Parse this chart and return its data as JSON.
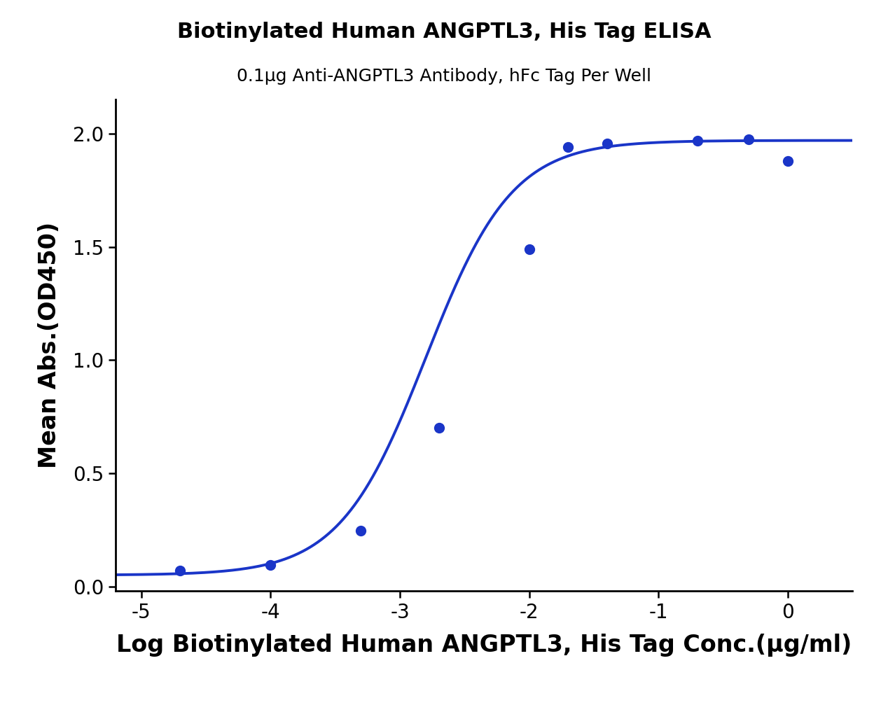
{
  "title": "Biotinylated Human ANGPTL3, His Tag ELISA",
  "subtitle": "0.1μg Anti-ANGPTL3 Antibody, hFc Tag Per Well",
  "xlabel": "Log Biotinylated Human ANGPTL3, His Tag Conc.(μg/ml)",
  "ylabel": "Mean Abs.(OD450)",
  "scatter_x": [
    -4.699,
    -4.0,
    -3.301,
    -2.699,
    -2.0,
    -1.699,
    -1.398,
    -0.699,
    -0.301,
    0.0
  ],
  "scatter_y": [
    0.07,
    0.095,
    0.245,
    0.7,
    1.49,
    1.94,
    1.955,
    1.97,
    1.975,
    1.88
  ],
  "xlim": [
    -5.2,
    0.5
  ],
  "ylim": [
    -0.02,
    2.15
  ],
  "xticks": [
    -5,
    -4,
    -3,
    -2,
    -1,
    0
  ],
  "yticks": [
    0.0,
    0.5,
    1.0,
    1.5,
    2.0
  ],
  "curve_color": "#1a35c8",
  "dot_color": "#1a35c8",
  "title_fontsize": 22,
  "subtitle_fontsize": 18,
  "axis_label_fontsize": 24,
  "tick_fontsize": 20,
  "line_width": 2.8,
  "dot_size": 100,
  "background_color": "#ffffff"
}
